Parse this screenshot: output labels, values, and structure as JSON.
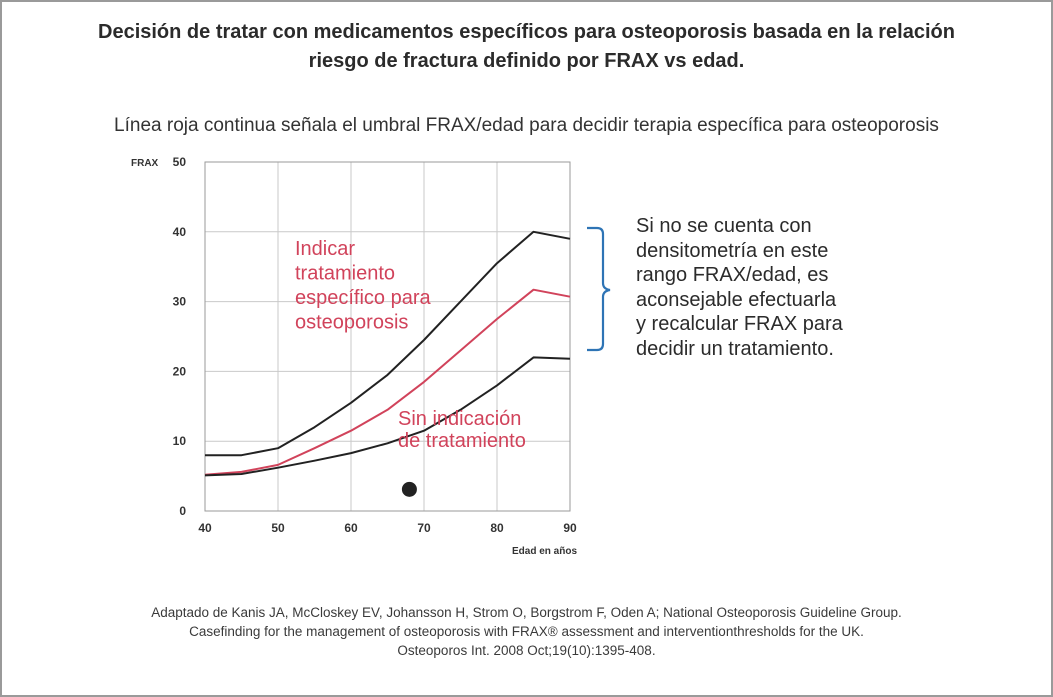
{
  "header": {
    "title_lines": [
      "Decisión de tratar con medicamentos específicos para osteoporosis basada en la relación",
      "riesgo de fractura definido por FRAX vs edad."
    ],
    "subtitle": "Línea roja continua señala el umbral FRAX/edad para decidir terapia específica para osteoporosis"
  },
  "side_note": {
    "lines": [
      "Si no se cuenta con",
      "densitometría en este",
      "rango FRAX/edad, es",
      "aconsejable efectuarla",
      "y recalcular FRAX para",
      "decidir un tratamiento."
    ],
    "bracket_color": "#2e74b5"
  },
  "citation": {
    "lines": [
      "Adaptado de Kanis JA, McCloskey EV, Johansson H, Strom O, Borgstrom F, Oden A; National Osteoporosis Guideline Group.",
      "Casefinding for the management of osteoporosis with FRAX® assessment and interventionthresholds for the UK.",
      "Osteoporos Int. 2008 Oct;19(10):1395-408."
    ]
  },
  "chart_data": {
    "type": "line",
    "ylabel": "FRAX",
    "xlabel": "Edad en años",
    "xlim": [
      40,
      90
    ],
    "ylim": [
      0,
      50
    ],
    "xticks": [
      40,
      50,
      60,
      70,
      80,
      90
    ],
    "yticks": [
      0,
      10,
      20,
      30,
      40,
      50
    ],
    "grid": true,
    "series": [
      {
        "color": "#222222",
        "points": [
          [
            40,
            8
          ],
          [
            45,
            8
          ],
          [
            50,
            9
          ],
          [
            55,
            12
          ],
          [
            60,
            15.5
          ],
          [
            65,
            19.5
          ],
          [
            70,
            24.5
          ],
          [
            75,
            30
          ],
          [
            80,
            35.5
          ],
          [
            85,
            40
          ],
          [
            90,
            39
          ]
        ]
      },
      {
        "color": "#d1435b",
        "points": [
          [
            40,
            5.2
          ],
          [
            45,
            5.6
          ],
          [
            50,
            6.6
          ],
          [
            55,
            9
          ],
          [
            60,
            11.5
          ],
          [
            65,
            14.5
          ],
          [
            70,
            18.5
          ],
          [
            75,
            23
          ],
          [
            80,
            27.5
          ],
          [
            85,
            31.7
          ],
          [
            90,
            30.7
          ]
        ]
      },
      {
        "color": "#222222",
        "points": [
          [
            40,
            5.1
          ],
          [
            45,
            5.3
          ],
          [
            50,
            6.2
          ],
          [
            55,
            7.2
          ],
          [
            60,
            8.3
          ],
          [
            65,
            9.7
          ],
          [
            70,
            11.5
          ],
          [
            75,
            14.5
          ],
          [
            80,
            18
          ],
          [
            85,
            22
          ],
          [
            90,
            21.8
          ]
        ]
      }
    ],
    "marker": {
      "x": 68,
      "y": 3.1,
      "color": "#222222"
    },
    "annotations": [
      {
        "lines": [
          "Indicar",
          "tratamiento",
          "específico para",
          "osteoporosis"
        ],
        "color": "#d1435b"
      },
      {
        "lines": [
          "Sin indicación",
          "de tratamiento"
        ],
        "color": "#d1435b"
      }
    ]
  }
}
